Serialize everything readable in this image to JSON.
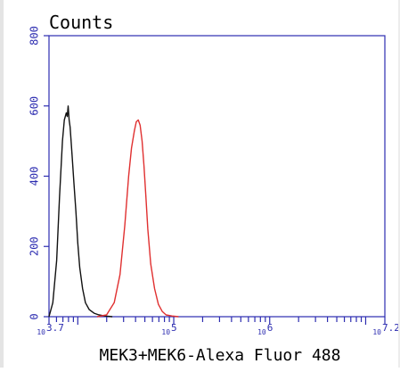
{
  "chart_data": {
    "type": "line",
    "title": "Counts",
    "xlabel": "MEK3+MEK6-Alexa Fluor 488",
    "ylabel": "",
    "x_scale": "log",
    "xlim": [
      3.7,
      7.2
    ],
    "ylim": [
      0,
      800
    ],
    "y_ticks": [
      0,
      200,
      400,
      600,
      800
    ],
    "x_tick_labels": [
      {
        "base": "10",
        "exp": "3.7",
        "value": 3.7
      },
      {
        "base": "10",
        "exp": "5",
        "value": 5
      },
      {
        "base": "10",
        "exp": "6",
        "value": 6
      },
      {
        "base": "10",
        "exp": "7.2",
        "value": 7.2
      }
    ],
    "grid": false,
    "series": [
      {
        "color": "#111111",
        "x": [
          3.7,
          3.74,
          3.78,
          3.81,
          3.84,
          3.86,
          3.88,
          3.89,
          3.9,
          3.91,
          3.92,
          3.93,
          3.94,
          3.96,
          3.98,
          4.0,
          4.02,
          4.05,
          4.08,
          4.12,
          4.17,
          4.22,
          4.28,
          4.36
        ],
        "y": [
          0,
          40,
          160,
          340,
          500,
          560,
          580,
          570,
          600,
          560,
          540,
          500,
          460,
          380,
          300,
          210,
          140,
          80,
          40,
          20,
          10,
          5,
          2,
          0
        ]
      },
      {
        "color": "#e03030",
        "x": [
          4.2,
          4.3,
          4.38,
          4.44,
          4.49,
          4.53,
          4.56,
          4.59,
          4.61,
          4.63,
          4.65,
          4.67,
          4.69,
          4.71,
          4.73,
          4.76,
          4.8,
          4.84,
          4.88,
          4.92,
          4.98,
          5.05
        ],
        "y": [
          0,
          5,
          40,
          120,
          260,
          400,
          480,
          530,
          555,
          560,
          545,
          500,
          430,
          340,
          250,
          150,
          80,
          35,
          15,
          5,
          2,
          0
        ]
      }
    ],
    "colors": {
      "axis": "#2c2cb0",
      "black_series": "#111111",
      "red_series": "#e03030"
    }
  }
}
